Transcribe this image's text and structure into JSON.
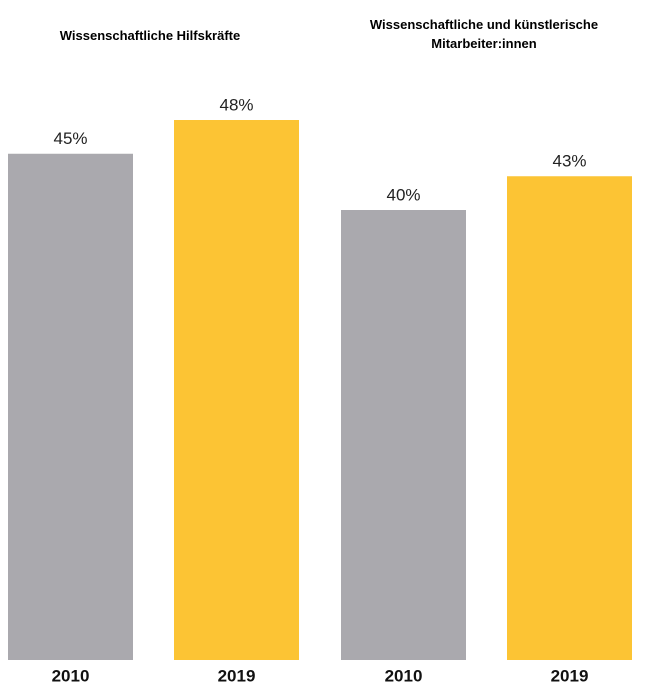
{
  "chart_data": [
    {
      "type": "bar",
      "title": "Wissenschaftliche Hilfskräfte",
      "categories": [
        "2010",
        "2019"
      ],
      "values": [
        45,
        48
      ],
      "value_labels": [
        "45%",
        "48%"
      ],
      "colors": [
        "#aaa9ae",
        "#fcc434"
      ]
    },
    {
      "type": "bar",
      "title": "Wissenschaftliche und künstlerische Mitarbeiter:innen",
      "categories": [
        "2010",
        "2019"
      ],
      "values": [
        40,
        43
      ],
      "value_labels": [
        "40%",
        "43%"
      ],
      "colors": [
        "#aaa9ae",
        "#fcc434"
      ]
    }
  ]
}
